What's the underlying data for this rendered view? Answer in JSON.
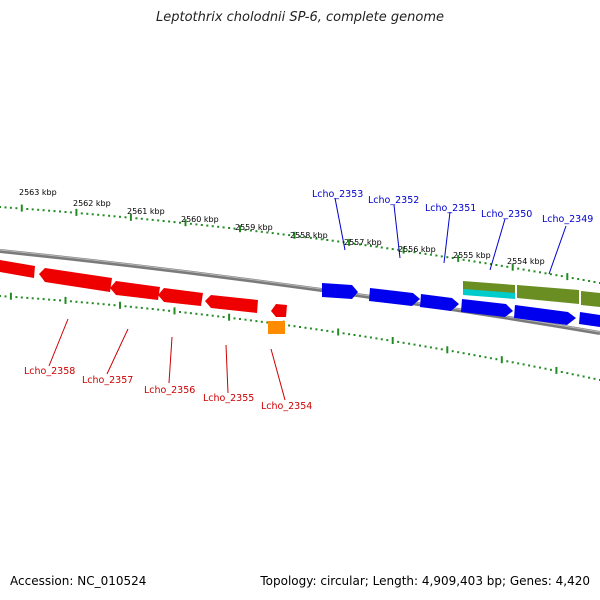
{
  "title": "Leptothrix cholodnii SP-6, complete genome",
  "footer": {
    "accession": "Accession: NC_010524",
    "summary": "Topology: circular; Length: 4,909,403 bp; Genes: 4,420"
  },
  "scale_labels": [
    "2563 kbp",
    "2562 kbp",
    "2561 kbp",
    "2560 kbp",
    "2559 kbp",
    "2558 kbp",
    "2557 kbp",
    "2556 kbp",
    "2555 kbp",
    "2554 kbp"
  ],
  "genes_top": [
    "Lcho_2353",
    "Lcho_2352",
    "Lcho_2351",
    "Lcho_2350",
    "Lcho_2349"
  ],
  "genes_bottom": [
    "Lcho_2358",
    "Lcho_2357",
    "Lcho_2356",
    "Lcho_2355",
    "Lcho_2354"
  ],
  "colors": {
    "forward_genes": "#0000ee",
    "reverse_genes": "#ee0000",
    "olive_feature": "#6b8e23",
    "cyan_feature": "#00cccc",
    "orange_feature": "#ff8c00",
    "ticks": "#228b22",
    "backbone": "#808080"
  }
}
